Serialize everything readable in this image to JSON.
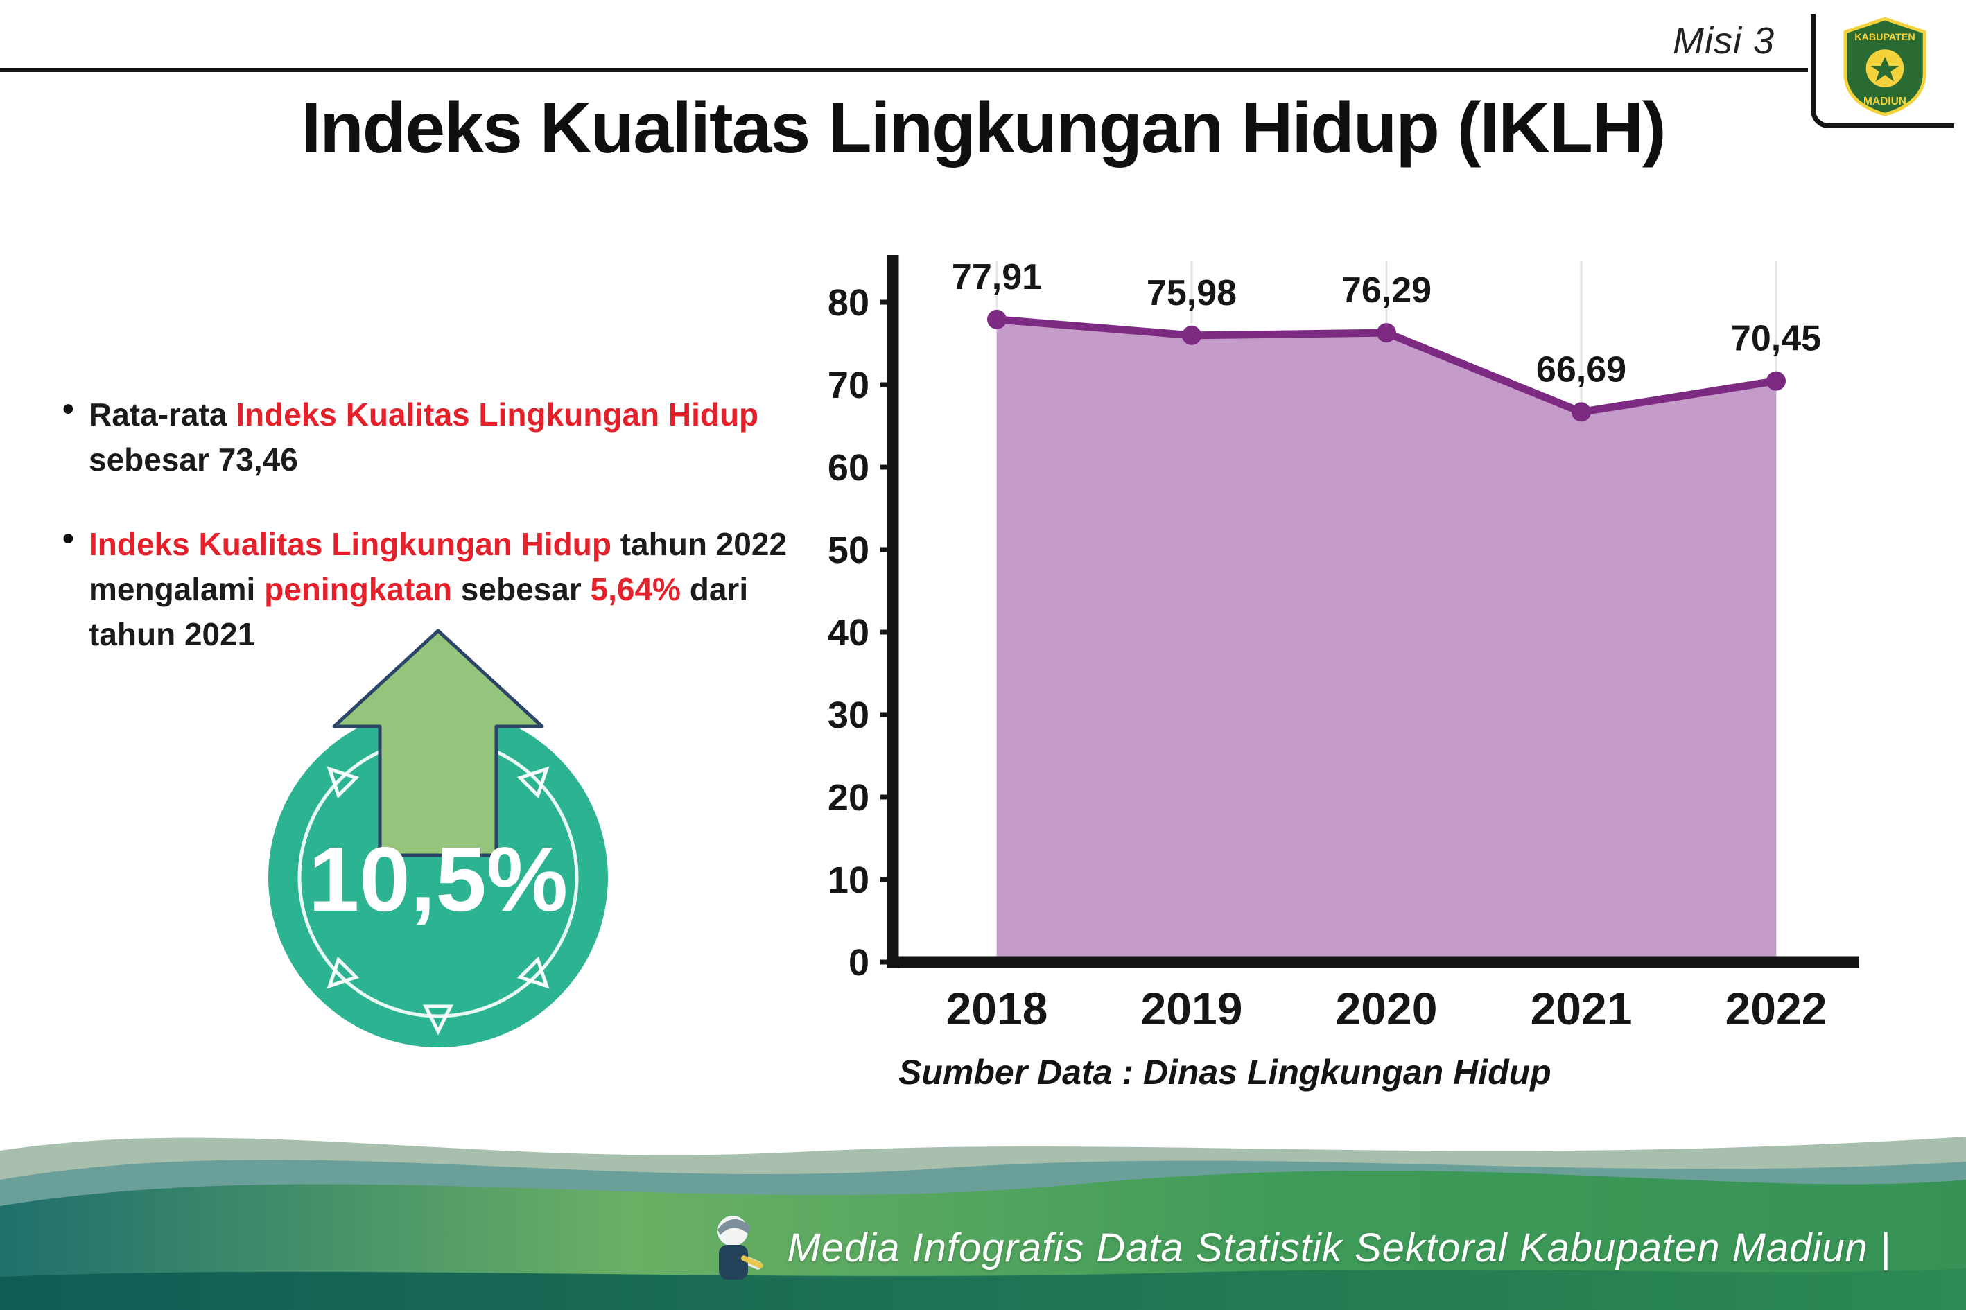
{
  "header": {
    "misi_label": "Misi 3",
    "title": "Indeks Kualitas Lingkungan Hidup (IKLH)",
    "logo": {
      "top_text": "KABUPATEN",
      "bottom_text": "MADIUN"
    }
  },
  "insights": {
    "marker": "•",
    "bullet1": {
      "black1": "Rata-rata ",
      "red1": "Indeks Kualitas Lingkungan Hidup",
      "black2": "sebesar 73,46"
    },
    "bullet2": {
      "red1": "Indeks Kualitas Lingkungan Hidup",
      "black1": " tahun 2022",
      "black2": "mengalami ",
      "red2": "peningkatan",
      "black3": " sebesar ",
      "red3": "5,64%",
      "black4": " dari",
      "black5": "tahun 2021"
    }
  },
  "badge": {
    "value": "10,5%"
  },
  "chart_data": {
    "type": "area",
    "categories": [
      "2018",
      "2019",
      "2020",
      "2021",
      "2022"
    ],
    "values": [
      77.91,
      75.98,
      76.29,
      66.69,
      70.45
    ],
    "value_labels": [
      "77,91",
      "75,98",
      "76,29",
      "66,69",
      "70,45"
    ],
    "title": "",
    "xlabel": "",
    "ylabel": "",
    "ylim": [
      0,
      80
    ],
    "yticks": [
      0,
      10,
      20,
      30,
      40,
      50,
      60,
      70,
      80
    ],
    "grid": "faint-vertical",
    "legend": "none",
    "line_color": "#7c2a82",
    "fill_color": "#c59bc9",
    "source_note": "Sumber Data : Dinas Lingkungan Hidup"
  },
  "footer": {
    "credit": "Media Infografis Data Statistik Sektoral Kabupaten Madiun |"
  },
  "colors": {
    "accent_red": "#e4202b",
    "badge_teal": "#2cb492",
    "arrow_green": "#95c57c",
    "chart_line": "#7c2a82",
    "chart_fill": "#c59bc9",
    "footer_teal": "#19706a",
    "footer_green": "#46a15c"
  }
}
